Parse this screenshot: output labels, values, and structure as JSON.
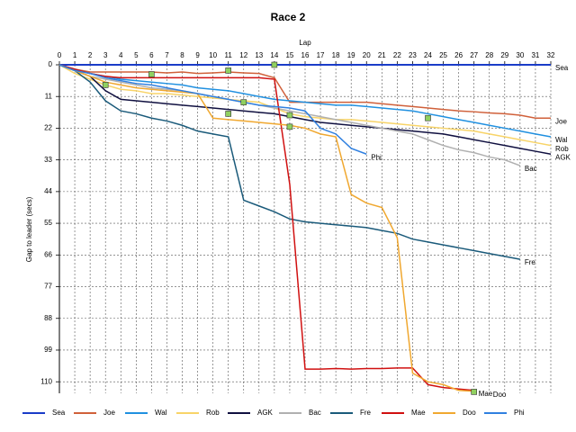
{
  "chart_data": {
    "type": "line",
    "title": "Race 2",
    "x_label": "Lap",
    "y_label": "Gap to leader (secs)",
    "x": [
      0,
      1,
      2,
      3,
      4,
      5,
      6,
      7,
      8,
      9,
      10,
      11,
      12,
      13,
      14,
      15,
      16,
      17,
      18,
      19,
      20,
      21,
      22,
      23,
      24,
      25,
      26,
      27,
      28,
      29,
      30,
      31,
      32
    ],
    "xlim": [
      0,
      32
    ],
    "xticks": [
      0,
      1,
      2,
      3,
      4,
      5,
      6,
      7,
      8,
      9,
      10,
      11,
      12,
      13,
      14,
      15,
      16,
      17,
      18,
      19,
      20,
      21,
      22,
      23,
      24,
      25,
      26,
      27,
      28,
      29,
      30,
      31,
      32
    ],
    "ylim": [
      0,
      114
    ],
    "yticks": [
      0,
      11,
      22,
      33,
      44,
      55,
      66,
      77,
      88,
      99,
      110
    ],
    "y_inverted": true,
    "grid": true,
    "legend": "bottom",
    "series": [
      {
        "name": "Sea",
        "color": "#1a3cc8",
        "values": [
          0,
          0,
          0,
          0,
          0,
          0,
          0,
          0,
          0,
          0,
          0,
          0,
          0,
          0,
          0,
          0,
          0,
          0,
          0,
          0,
          0,
          0,
          0,
          0,
          0,
          0,
          0,
          0,
          0,
          0,
          0,
          0,
          0
        ]
      },
      {
        "name": "Joe",
        "color": "#d0603a",
        "values": [
          0,
          1.5,
          2.5,
          2.5,
          2.5,
          2.5,
          2.5,
          2.8,
          2.5,
          3,
          2.8,
          2.5,
          2.8,
          3,
          4.5,
          13,
          13,
          13,
          13,
          13,
          13,
          13.5,
          14,
          14.5,
          15,
          15.5,
          16,
          16.3,
          16.7,
          17,
          17.5,
          18.5,
          18.5
        ]
      },
      {
        "name": "Wal",
        "color": "#2090e0",
        "values": [
          0,
          1.5,
          3,
          4,
          5,
          5.5,
          6,
          6.5,
          7,
          8,
          8.5,
          9,
          10,
          11,
          12,
          12.5,
          13,
          13.5,
          14,
          14,
          14.5,
          15,
          15.5,
          16,
          17,
          18,
          19,
          20,
          21,
          22,
          23,
          24,
          25
        ]
      },
      {
        "name": "Rob",
        "color": "#f8d468",
        "values": [
          0,
          3,
          5,
          7,
          8.5,
          9,
          10,
          10,
          10.5,
          11,
          11.5,
          12,
          12.5,
          13,
          15,
          17,
          18,
          18.5,
          19,
          19,
          19.5,
          20,
          20.5,
          21,
          21.5,
          22,
          22.5,
          23,
          24,
          25,
          26,
          27,
          28
        ]
      },
      {
        "name": "AGK",
        "color": "#101040",
        "values": [
          0,
          2,
          4,
          9,
          12,
          12.5,
          13,
          13.5,
          14,
          14.5,
          15,
          15.5,
          16,
          16.5,
          17,
          18,
          19,
          20,
          20.5,
          21,
          21.5,
          22,
          22.5,
          23,
          23.5,
          24,
          25,
          26,
          27,
          28,
          29,
          30,
          31
        ]
      },
      {
        "name": "Bac",
        "color": "#b0b0b0",
        "values": [
          0,
          2,
          4,
          5,
          6,
          7,
          8,
          8.5,
          9,
          10,
          11,
          12,
          13,
          14,
          15,
          16,
          17,
          18,
          19,
          20,
          21,
          22,
          23,
          24,
          26,
          28,
          29.5,
          30.5,
          32,
          33,
          35,
          null,
          null
        ]
      },
      {
        "name": "Fre",
        "color": "#1a5a7a",
        "values": [
          0,
          2,
          6,
          12.5,
          16,
          17,
          18.5,
          19.5,
          21,
          23,
          24,
          25,
          47,
          49,
          51,
          53.5,
          54.5,
          55,
          55.5,
          56,
          56.5,
          57.5,
          58.5,
          60.5,
          61.5,
          62.5,
          63.5,
          64.5,
          65.5,
          66.5,
          67.5,
          null,
          null
        ]
      },
      {
        "name": "Mae",
        "color": "#d01010",
        "values": [
          0,
          1.5,
          3,
          4,
          4.5,
          4.5,
          4.5,
          4.5,
          4.5,
          4.5,
          4.5,
          4.5,
          4.5,
          4.5,
          5,
          41.5,
          105.6,
          105.6,
          105.4,
          105.6,
          105.4,
          105.4,
          105.2,
          105.2,
          111,
          112,
          112.5,
          113,
          null,
          null,
          null,
          null,
          null
        ]
      },
      {
        "name": "Doo",
        "color": "#f0a830",
        "values": [
          0,
          2,
          4,
          6,
          7,
          8,
          8.5,
          9,
          9.5,
          10,
          18.5,
          19,
          19.5,
          20,
          20.5,
          21,
          22,
          24,
          25,
          45,
          48,
          49.5,
          60,
          107,
          110,
          111,
          113,
          113.3,
          null,
          null,
          null,
          null,
          null
        ]
      },
      {
        "name": "Phi",
        "color": "#3080e0",
        "values": [
          0,
          2,
          3,
          4.5,
          5.5,
          6.5,
          7,
          8,
          9,
          10,
          11,
          12,
          13,
          14,
          14.5,
          15,
          16,
          22,
          24,
          29,
          31,
          null,
          null,
          null,
          null,
          null,
          null,
          null,
          null,
          null,
          null,
          null,
          null
        ]
      }
    ],
    "markers": {
      "color": "#90d060",
      "x": [
        3,
        6,
        11,
        11,
        12,
        14,
        15,
        15,
        24,
        27
      ],
      "y": [
        7,
        3.3,
        2,
        17,
        13,
        0,
        17.5,
        21.5,
        18.5,
        113.5
      ]
    }
  }
}
